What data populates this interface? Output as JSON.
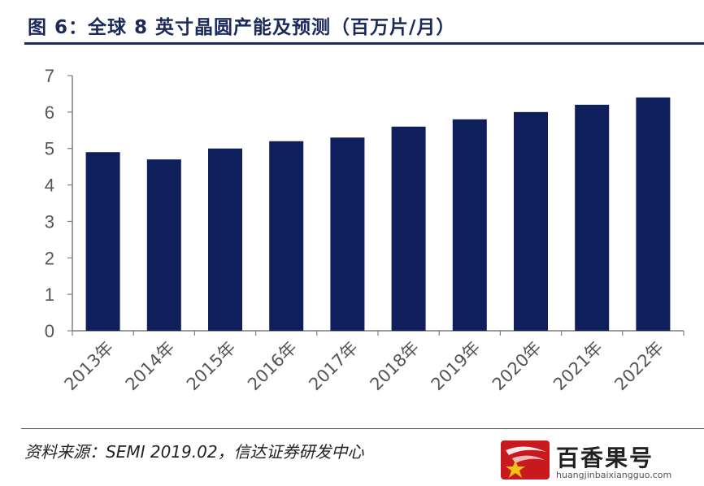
{
  "header": {
    "title": "图 6：全球 8 英寸晶圆产能及预测（百万片/月）"
  },
  "footer": {
    "source": "资料来源：SEMI 2019.02，信达证券研发中心"
  },
  "watermark": {
    "name": "百香果号",
    "url": "huangjinbaixiangguo.com",
    "icon": "star-swoosh-logo"
  },
  "colors": {
    "bar": "#0f1f5c",
    "title": "#1b2a5a",
    "axis": "#7f7f7f",
    "watermark_red": "#c8191f",
    "star": "#f2c21b"
  },
  "chart_data": {
    "type": "bar",
    "title": "",
    "xlabel": "",
    "ylabel": "",
    "categories": [
      "2013年",
      "2014年",
      "2015年",
      "2016年",
      "2017年",
      "2018年",
      "2019年",
      "2020年",
      "2021年",
      "2022年"
    ],
    "values": [
      4.9,
      4.7,
      5.0,
      5.2,
      5.3,
      5.6,
      5.8,
      6.0,
      6.2,
      6.4
    ],
    "ylim": [
      0,
      7
    ],
    "yticks": [
      "0",
      "1",
      "2",
      "3",
      "4",
      "5",
      "6",
      "7"
    ],
    "grid": false,
    "legend": "none"
  }
}
